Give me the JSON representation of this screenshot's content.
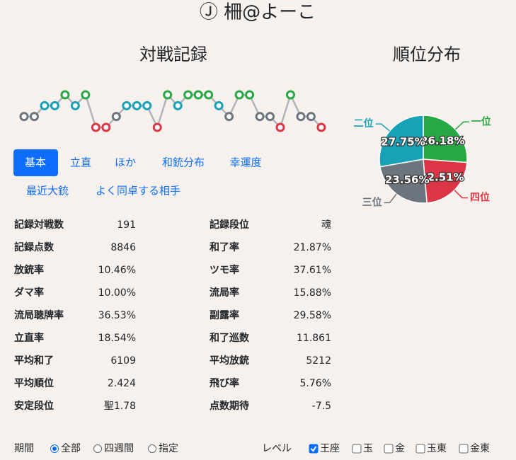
{
  "header": {
    "title": "Ⓙ 柵@よーこ"
  },
  "tabs": [
    "基本",
    "立直",
    "ほか",
    "和銃分布",
    "幸運度",
    "最近大銃",
    "よく同卓する相手"
  ],
  "stats": {
    "left": [
      [
        "記録対戦数",
        "191"
      ],
      [
        "記録点数",
        "8846"
      ],
      [
        "放銃率",
        "10.46%"
      ],
      [
        "ダマ率",
        "10.00%"
      ],
      [
        "流局聴牌率",
        "36.53%"
      ],
      [
        "立直率",
        "18.54%"
      ],
      [
        "平均和了",
        "6109"
      ],
      [
        "平均順位",
        "2.424"
      ],
      [
        "安定段位",
        "聖1.78"
      ]
    ],
    "right": [
      [
        "記録段位",
        "魂"
      ],
      [
        "和了率",
        "21.87%"
      ],
      [
        "ツモ率",
        "37.61%"
      ],
      [
        "流局率",
        "15.88%"
      ],
      [
        "副露率",
        "29.58%"
      ],
      [
        "和了巡数",
        "11.861"
      ],
      [
        "平均放銃",
        "5212"
      ],
      [
        "飛び率",
        "5.76%"
      ],
      [
        "点数期待",
        "-7.5"
      ]
    ]
  },
  "footer": {
    "period_label": "期間",
    "periods": [
      "全部",
      "四週間",
      "指定"
    ],
    "level_label": "レベル",
    "levels": [
      "王座",
      "玉",
      "金",
      "玉東",
      "金東"
    ]
  },
  "chart_data": [
    {
      "type": "line",
      "title": "対戦記録",
      "values": [
        3,
        3,
        2,
        2,
        1,
        2,
        1,
        4,
        4,
        3,
        2,
        2,
        2,
        4,
        1,
        2,
        1,
        1,
        1,
        2,
        3,
        1,
        1,
        3,
        3,
        4,
        1,
        3,
        3,
        4
      ],
      "ylim": [
        4,
        1
      ],
      "point_colors": [
        "#28a745",
        "#17a2b8",
        "#6c757d",
        "#dc3545"
      ],
      "color": "#b0b4b8"
    },
    {
      "type": "pie",
      "title": "順位分布",
      "categories": [
        "一位",
        "四位",
        "三位",
        "二位"
      ],
      "values": [
        26.18,
        22.51,
        23.56,
        27.75
      ],
      "value_labels": [
        "26.18%",
        "22.51%",
        "23.56%",
        "27.75%"
      ],
      "colors": [
        "#28a745",
        "#dc3545",
        "#6c757d",
        "#17a2b8"
      ]
    }
  ]
}
